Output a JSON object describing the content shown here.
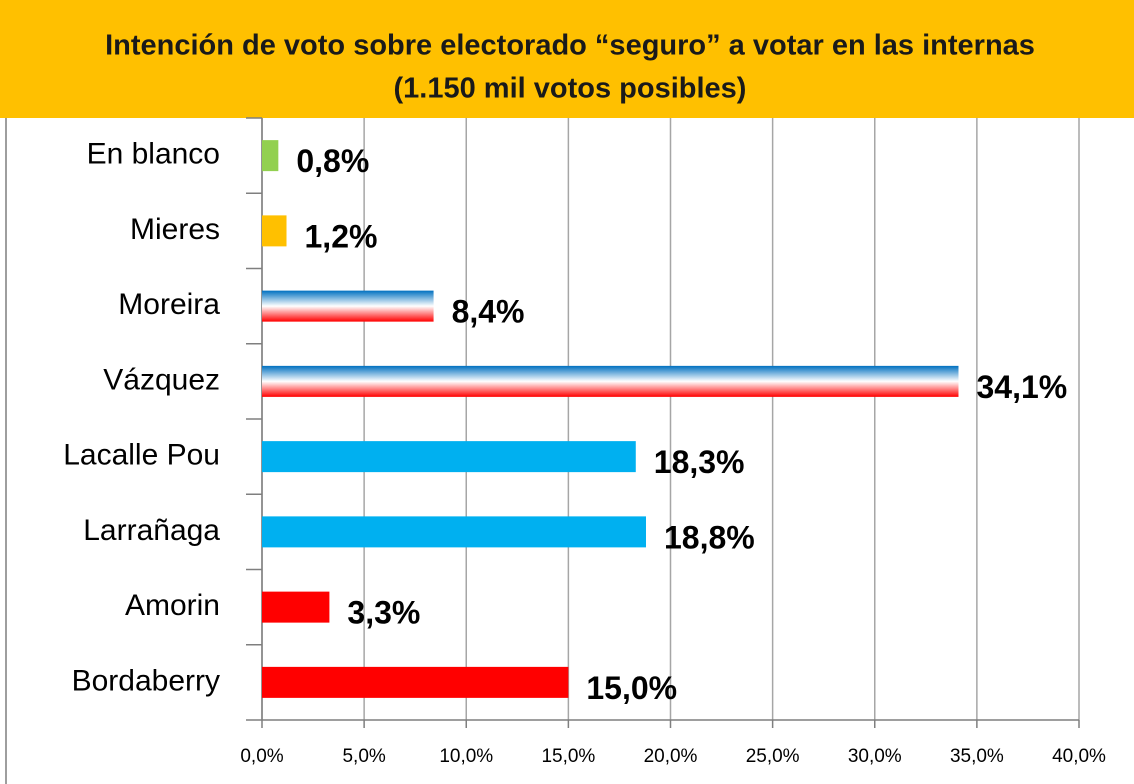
{
  "chart_data": {
    "type": "barh",
    "title": [
      "Intención de voto sobre electorado “seguro” a votar en las internas",
      "(1.150 mil votos posibles)"
    ],
    "categories": [
      "En blanco",
      "Mieres",
      "Moreira",
      "Vázquez",
      "Lacalle Pou",
      "Larrañaga",
      "Amorin",
      "Bordaberry"
    ],
    "values": [
      0.8,
      1.2,
      8.4,
      34.1,
      18.3,
      18.8,
      3.3,
      15.0
    ],
    "value_labels": [
      "0,8%",
      "1,2%",
      "8,4%",
      "34,1%",
      "18,3%",
      "18,8%",
      "3,3%",
      "15,0%"
    ],
    "colors": [
      "#92d050",
      "#ffc000",
      [
        "#0070c0",
        "#ffffff",
        "#ff0000"
      ],
      [
        "#0070c0",
        "#ffffff",
        "#ff0000"
      ],
      "#00b0f0",
      "#00b0f0",
      "#ff0000",
      "#ff0000"
    ],
    "xlim": [
      0,
      40
    ],
    "xticks": [
      {
        "value": 0,
        "label": "0,0%"
      },
      {
        "value": 5,
        "label": "5,0%"
      },
      {
        "value": 10,
        "label": "10,0%"
      },
      {
        "value": 15,
        "label": "15,0%"
      },
      {
        "value": 20,
        "label": "20,0%"
      },
      {
        "value": 25,
        "label": "25,0%"
      },
      {
        "value": 30,
        "label": "30,0%"
      },
      {
        "value": 35,
        "label": "35,0%"
      },
      {
        "value": 40,
        "label": "40,0%"
      }
    ],
    "grid": true
  }
}
